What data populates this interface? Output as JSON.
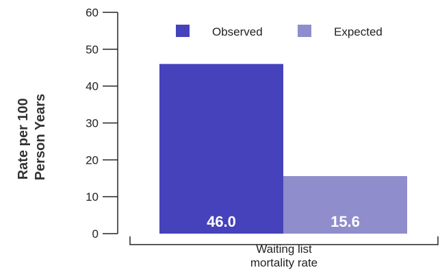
{
  "chart_data": {
    "type": "bar",
    "categories": [
      "Waiting list mortality rate"
    ],
    "category_label_lines": [
      "Waiting list",
      "mortality rate"
    ],
    "series": [
      {
        "name": "Observed",
        "values": [
          46.0
        ],
        "label": "46.0",
        "color": "#4542bb"
      },
      {
        "name": "Expected",
        "values": [
          15.6
        ],
        "label": "15.6",
        "color": "#8f8dcb"
      }
    ],
    "ylabel_lines": [
      "Rate per 100",
      "Person Years"
    ],
    "ylim": [
      0,
      60
    ],
    "yticks": [
      0,
      10,
      20,
      30,
      40,
      50,
      60
    ],
    "ytick_labels": [
      "0",
      "10",
      "20",
      "30",
      "40",
      "50",
      "60"
    ],
    "legend_position": "top",
    "grid": false
  }
}
